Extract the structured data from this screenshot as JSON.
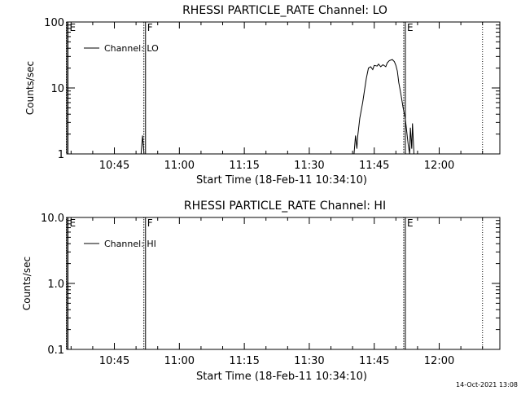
{
  "footer": {
    "timestamp": "14-Oct-2021 13:08"
  },
  "chart_data": [
    {
      "type": "line",
      "title": "RHESSI PARTICLE_RATE Channel: LO",
      "xlabel": "Start Time (18-Feb-11 10:34:10)",
      "ylabel": "Counts/sec",
      "yscale": "log",
      "ylim": [
        1,
        100
      ],
      "xlim": [
        "10:34",
        "12:14"
      ],
      "xticks": [
        "10:45",
        "11:00",
        "11:15",
        "11:30",
        "11:45",
        "12:00"
      ],
      "yticks": [
        "1",
        "10",
        "100"
      ],
      "grid": false,
      "legend": {
        "placement": "top-left",
        "entries": [
          "Channel: LO"
        ]
      },
      "markers": [
        {
          "label": "E",
          "time": "10:34",
          "style": "solid"
        },
        {
          "label": "F",
          "time": "10:52",
          "style": "solid"
        },
        {
          "label": "E",
          "time": "11:52",
          "style": "solid"
        },
        {
          "label": "",
          "time": "12:10",
          "style": "dotted"
        }
      ],
      "series": [
        {
          "name": "Channel: LO",
          "points": [
            [
              "10:51:10",
              0.8
            ],
            [
              "10:51:30",
              1.9
            ],
            [
              "10:51:50",
              1.0
            ],
            [
              "10:52:10",
              0.8
            ],
            [
              "11:40:20",
              0.8
            ],
            [
              "11:40:40",
              1.9
            ],
            [
              "11:41:00",
              1.2
            ],
            [
              "11:41:10",
              1.8
            ],
            [
              "11:41:40",
              3.5
            ],
            [
              "11:42:20",
              6.0
            ],
            [
              "11:42:50",
              10.0
            ],
            [
              "11:43:10",
              14.0
            ],
            [
              "11:43:40",
              20.0
            ],
            [
              "11:44:10",
              21.0
            ],
            [
              "11:44:40",
              19.0
            ],
            [
              "11:45:00",
              22.0
            ],
            [
              "11:45:40",
              21.5
            ],
            [
              "11:46:00",
              23.0
            ],
            [
              "11:46:30",
              21.0
            ],
            [
              "11:47:00",
              22.5
            ],
            [
              "11:47:40",
              21.0
            ],
            [
              "11:48:00",
              24.0
            ],
            [
              "11:48:30",
              26.0
            ],
            [
              "11:49:10",
              27.0
            ],
            [
              "11:49:40",
              25.0
            ],
            [
              "11:50:00",
              22.0
            ],
            [
              "11:50:20",
              18.0
            ],
            [
              "11:50:40",
              12.0
            ],
            [
              "11:51:10",
              8.0
            ],
            [
              "11:51:40",
              5.0
            ],
            [
              "11:52:10",
              3.5
            ],
            [
              "11:52:30",
              2.2
            ],
            [
              "11:52:50",
              1.4
            ],
            [
              "11:53:10",
              0.8
            ],
            [
              "11:53:20",
              2.5
            ],
            [
              "11:53:40",
              1.2
            ],
            [
              "11:53:50",
              2.9
            ],
            [
              "11:54:10",
              0.8
            ]
          ]
        }
      ]
    },
    {
      "type": "line",
      "title": "RHESSI PARTICLE_RATE Channel: HI",
      "xlabel": "Start Time (18-Feb-11 10:34:10)",
      "ylabel": "Counts/sec",
      "yscale": "log",
      "ylim": [
        0.1,
        10
      ],
      "xlim": [
        "10:34",
        "12:14"
      ],
      "xticks": [
        "10:45",
        "11:00",
        "11:15",
        "11:30",
        "11:45",
        "12:00"
      ],
      "yticks": [
        "0.1",
        "1.0",
        "10.0"
      ],
      "grid": false,
      "legend": {
        "placement": "top-left",
        "entries": [
          "Channel: HI"
        ]
      },
      "markers": [
        {
          "label": "E",
          "time": "10:34",
          "style": "solid"
        },
        {
          "label": "F",
          "time": "10:52",
          "style": "solid"
        },
        {
          "label": "E",
          "time": "11:52",
          "style": "solid"
        },
        {
          "label": "",
          "time": "12:10",
          "style": "dotted"
        }
      ],
      "series": [
        {
          "name": "Channel: HI",
          "points": []
        }
      ]
    }
  ]
}
